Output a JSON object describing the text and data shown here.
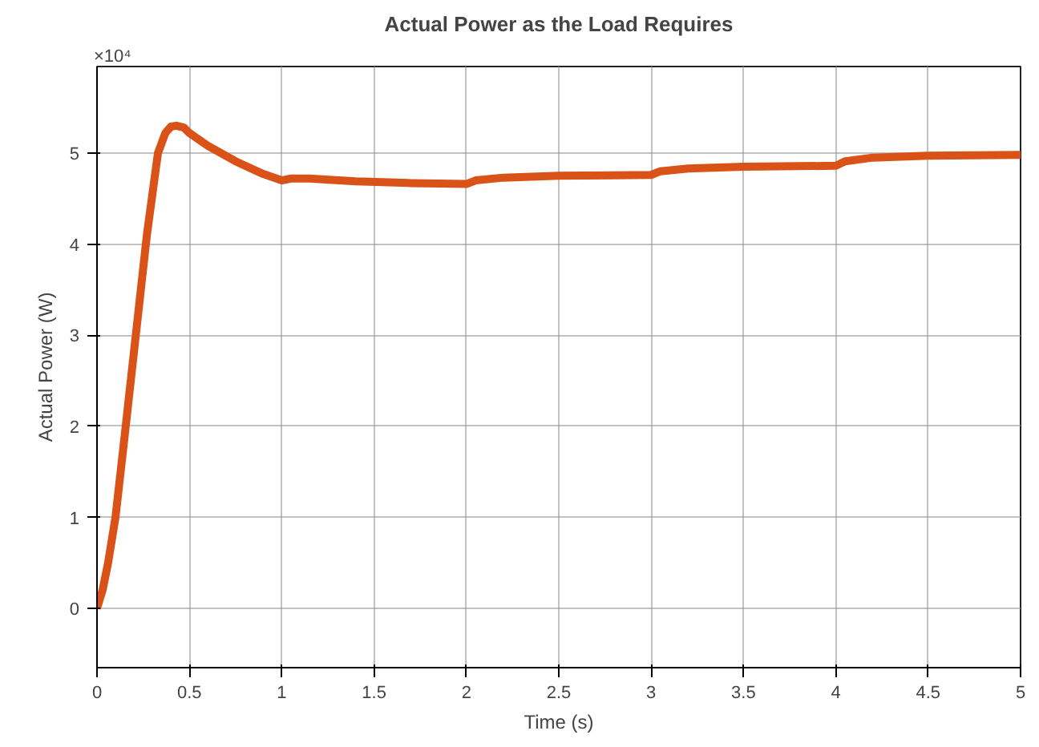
{
  "chart_data": {
    "type": "line",
    "title": "Actual Power as the Load Requires",
    "xlabel": "Time (s)",
    "ylabel": "Actual Power (W)",
    "annotations": [
      "×10⁴"
    ],
    "xlim": [
      0,
      5
    ],
    "ylim": [
      -0.65,
      5.95
    ],
    "xticks": [
      0,
      0.5,
      1,
      1.5,
      2,
      2.5,
      3,
      3.5,
      4,
      4.5,
      5
    ],
    "yticks": [
      0,
      1,
      2,
      3,
      4,
      5
    ],
    "grid": true,
    "line_style": "solid",
    "series": [
      {
        "color": "#d95319",
        "x": [
          0,
          0.03,
          0.06,
          0.1,
          0.15,
          0.21,
          0.27,
          0.33,
          0.37,
          0.4,
          0.43,
          0.47,
          0.5,
          0.6,
          0.75,
          0.9,
          1.0,
          1.05,
          1.15,
          1.4,
          1.7,
          2.0,
          2.05,
          2.2,
          2.5,
          3.0,
          3.05,
          3.2,
          3.5,
          4.0,
          4.05,
          4.2,
          4.5,
          5.0
        ],
        "values": [
          0,
          0.2,
          0.5,
          1.0,
          1.9,
          3.0,
          4.1,
          5.0,
          5.22,
          5.29,
          5.3,
          5.28,
          5.22,
          5.08,
          4.91,
          4.77,
          4.7,
          4.72,
          4.72,
          4.69,
          4.67,
          4.66,
          4.7,
          4.73,
          4.75,
          4.76,
          4.8,
          4.83,
          4.85,
          4.86,
          4.91,
          4.95,
          4.97,
          4.98
        ]
      }
    ]
  }
}
